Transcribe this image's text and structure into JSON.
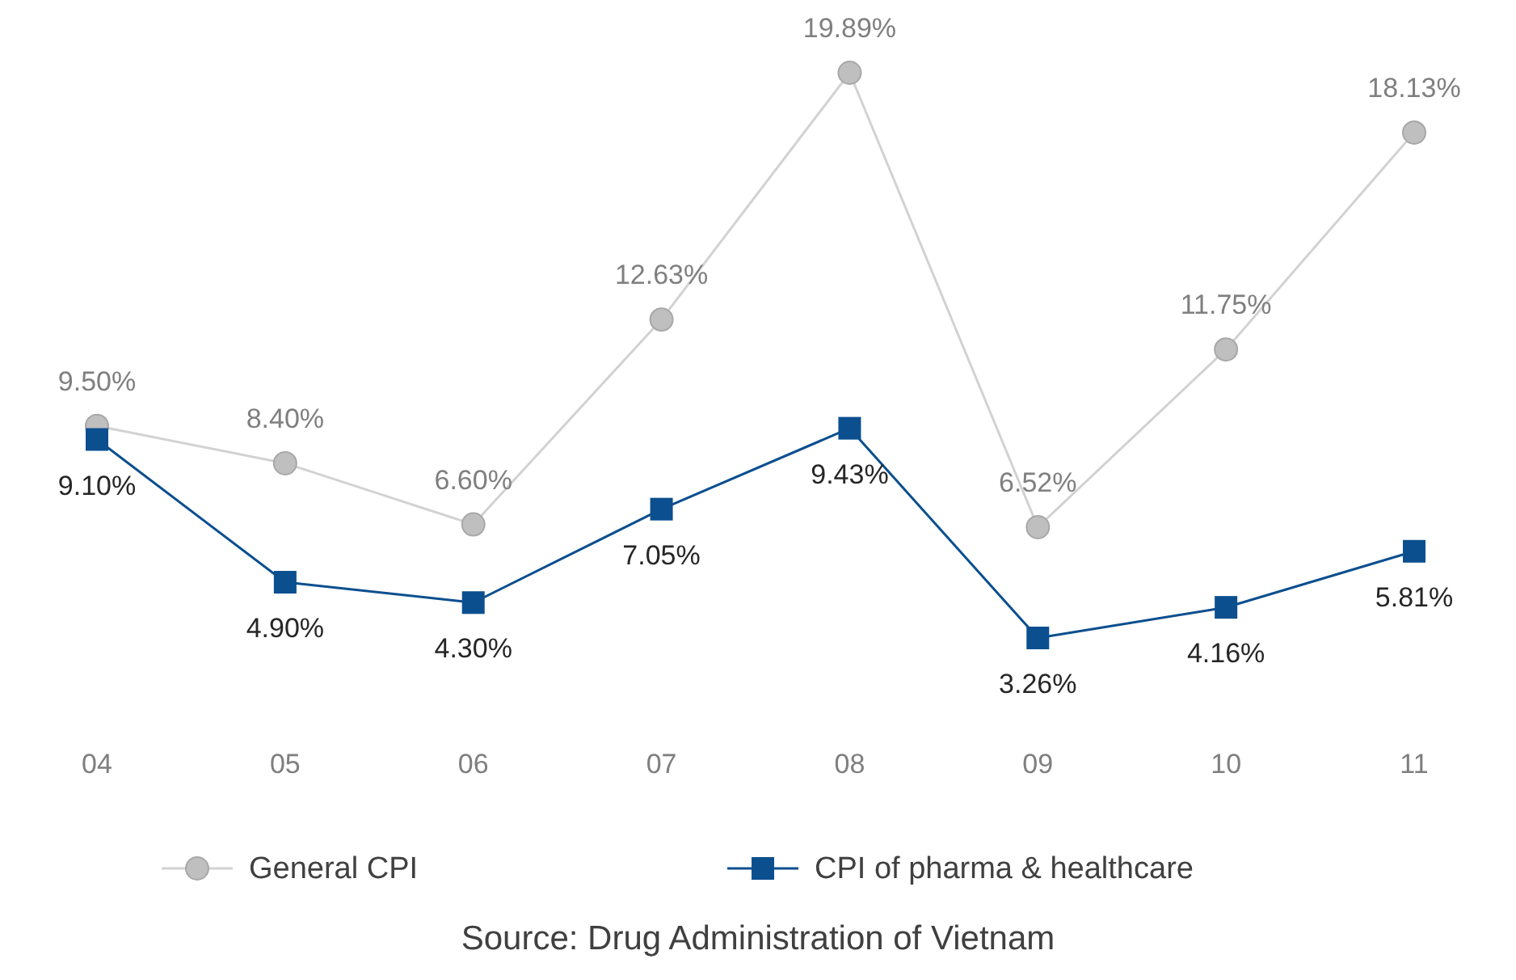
{
  "chart_data": {
    "type": "line",
    "categories": [
      "04",
      "05",
      "06",
      "07",
      "08",
      "09",
      "10",
      "11"
    ],
    "series": [
      {
        "name": "General CPI",
        "color": "#bfbfbf",
        "marker": "circle",
        "values": [
          9.5,
          8.4,
          6.6,
          12.63,
          19.89,
          6.52,
          11.75,
          18.13
        ],
        "value_labels": [
          "9.50%",
          "8.40%",
          "6.60%",
          "12.63%",
          "19.89%",
          "6.52%",
          "11.75%",
          "18.13%"
        ]
      },
      {
        "name": "CPI of pharma & healthcare",
        "color": "#0b4f8f",
        "marker": "square",
        "values": [
          9.1,
          4.9,
          4.3,
          7.05,
          9.43,
          3.26,
          4.16,
          5.81
        ],
        "value_labels": [
          "9.10%",
          "4.90%",
          "4.30%",
          "7.05%",
          "9.43%",
          "3.26%",
          "4.16%",
          "5.81%"
        ]
      }
    ],
    "legend": "bottom",
    "tick_labels": "x",
    "annotations": [
      "Source: Drug Administration of Vietnam"
    ]
  }
}
